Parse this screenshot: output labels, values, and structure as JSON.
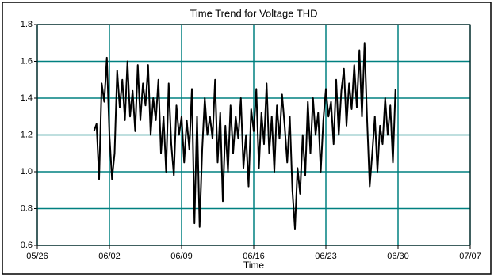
{
  "chart_data": {
    "type": "line",
    "title": "Time Trend for Voltage THD",
    "x_label": "Time",
    "color": "#000000",
    "grid": true,
    "grid_color": "#008080",
    "xlim": [
      "05/26",
      "07/07"
    ],
    "xticks": [
      "05/26",
      "06/02",
      "06/09",
      "06/16",
      "06/23",
      "06/30",
      "07/07"
    ],
    "ylim": [
      0.6,
      1.8
    ],
    "yticks": [
      0.6,
      0.8,
      {
        "value": 1,
        "label": "1.0"
      },
      1.2,
      1.4,
      1.6,
      1.8
    ],
    "x": [
      "05/31 12:00",
      "05/31 18:00",
      "06/01 00:00",
      "06/01 06:00",
      "06/01 12:00",
      "06/01 18:00",
      "06/02 00:00",
      "06/02 06:00",
      "06/02 12:00",
      "06/02 18:00",
      "06/03 00:00",
      "06/03 06:00",
      "06/03 12:00",
      "06/03 18:00",
      "06/04 00:00",
      "06/04 06:00",
      "06/04 12:00",
      "06/04 18:00",
      "06/05 00:00",
      "06/05 06:00",
      "06/05 12:00",
      "06/05 18:00",
      "06/06 00:00",
      "06/06 06:00",
      "06/06 12:00",
      "06/06 18:00",
      "06/07 00:00",
      "06/07 06:00",
      "06/07 12:00",
      "06/07 18:00",
      "06/08 00:00",
      "06/08 06:00",
      "06/08 12:00",
      "06/08 18:00",
      "06/09 00:00",
      "06/09 06:00",
      "06/09 12:00",
      "06/09 18:00",
      "06/10 00:00",
      "06/10 06:00",
      "06/10 12:00",
      "06/10 18:00",
      "06/11 00:00",
      "06/11 06:00",
      "06/11 12:00",
      "06/11 18:00",
      "06/12 00:00",
      "06/12 06:00",
      "06/12 12:00",
      "06/12 18:00",
      "06/13 00:00",
      "06/13 06:00",
      "06/13 12:00",
      "06/13 18:00",
      "06/14 00:00",
      "06/14 06:00",
      "06/14 12:00",
      "06/14 18:00",
      "06/15 00:00",
      "06/15 06:00",
      "06/15 12:00",
      "06/15 18:00",
      "06/16 00:00",
      "06/16 06:00",
      "06/16 12:00",
      "06/16 18:00",
      "06/17 00:00",
      "06/17 06:00",
      "06/17 12:00",
      "06/17 18:00",
      "06/18 00:00",
      "06/18 06:00",
      "06/18 12:00",
      "06/18 18:00",
      "06/19 00:00",
      "06/19 06:00",
      "06/19 12:00",
      "06/19 18:00",
      "06/20 00:00",
      "06/20 06:00",
      "06/20 12:00",
      "06/20 18:00",
      "06/21 00:00",
      "06/21 06:00",
      "06/21 12:00",
      "06/21 18:00",
      "06/22 00:00",
      "06/22 06:00",
      "06/22 12:00",
      "06/22 18:00",
      "06/23 00:00",
      "06/23 06:00",
      "06/23 12:00",
      "06/23 18:00",
      "06/24 00:00",
      "06/24 06:00",
      "06/24 12:00",
      "06/24 18:00",
      "06/25 00:00",
      "06/25 06:00",
      "06/25 12:00",
      "06/25 18:00",
      "06/26 00:00",
      "06/26 06:00",
      "06/26 12:00",
      "06/26 18:00",
      "06/27 00:00",
      "06/27 06:00",
      "06/27 12:00",
      "06/27 18:00",
      "06/28 00:00",
      "06/28 06:00",
      "06/28 12:00",
      "06/28 18:00",
      "06/29 00:00",
      "06/29 06:00",
      "06/29 12:00",
      "06/29 18:00"
    ],
    "values": [
      1.22,
      1.26,
      0.96,
      1.48,
      1.38,
      1.62,
      1.2,
      0.96,
      1.1,
      1.55,
      1.35,
      1.5,
      1.28,
      1.6,
      1.3,
      1.44,
      1.22,
      1.58,
      1.28,
      1.48,
      1.36,
      1.58,
      1.2,
      1.4,
      1.28,
      1.5,
      1.1,
      1.3,
      1.0,
      1.48,
      1.15,
      0.98,
      1.36,
      1.2,
      1.3,
      1.05,
      1.28,
      1.12,
      1.45,
      0.72,
      1.3,
      0.7,
      1.12,
      1.4,
      1.2,
      1.3,
      1.18,
      1.5,
      1.05,
      1.32,
      0.84,
      1.25,
      1.0,
      1.36,
      1.1,
      1.3,
      1.18,
      1.4,
      1.02,
      1.2,
      0.92,
      1.34,
      1.22,
      1.45,
      1.02,
      1.32,
      1.15,
      1.48,
      1.1,
      1.3,
      1.0,
      1.36,
      1.18,
      1.42,
      1.25,
      1.05,
      1.3,
      0.9,
      0.69,
      1.02,
      0.88,
      1.2,
      0.98,
      1.38,
      1.1,
      1.4,
      1.2,
      1.32,
      1.0,
      1.28,
      1.45,
      1.3,
      1.38,
      1.15,
      1.5,
      1.2,
      1.44,
      1.56,
      1.25,
      1.48,
      1.34,
      1.58,
      1.35,
      1.66,
      1.3,
      1.7,
      1.28,
      0.92,
      1.1,
      1.3,
      1.0,
      1.25,
      1.15,
      1.4,
      1.2,
      1.36,
      1.05,
      1.45
    ]
  }
}
